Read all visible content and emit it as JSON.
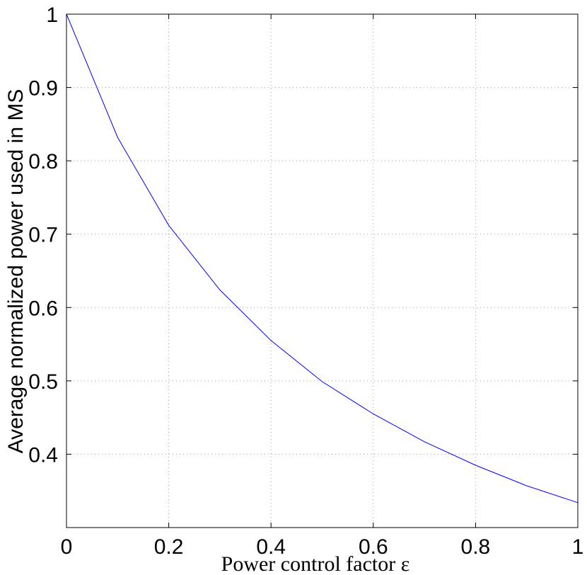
{
  "chart_data": {
    "type": "line",
    "title": "",
    "xlabel": "Power control factor ε",
    "ylabel": "Average normalized power used in MS",
    "xlim": [
      0,
      1
    ],
    "ylim": [
      0.3,
      1
    ],
    "grid": true,
    "x_ticks": [
      0,
      0.2,
      0.4,
      0.6,
      0.8,
      1
    ],
    "x_tick_labels": [
      "0",
      "0.2",
      "0.4",
      "0.6",
      "0.8",
      "1"
    ],
    "y_ticks": [
      0.4,
      0.5,
      0.6,
      0.7,
      0.8,
      0.9,
      1
    ],
    "y_tick_labels": [
      "0.4",
      "0.5",
      "0.6",
      "0.7",
      "0.8",
      "0.9",
      "1"
    ],
    "series": [
      {
        "color": "#0000ff",
        "x": [
          0,
          0.1,
          0.2,
          0.3,
          0.4,
          0.5,
          0.6,
          0.7,
          0.8,
          0.9,
          1.0
        ],
        "y": [
          1.0,
          0.832,
          0.712,
          0.624,
          0.555,
          0.499,
          0.455,
          0.417,
          0.385,
          0.357,
          0.334
        ]
      }
    ]
  }
}
